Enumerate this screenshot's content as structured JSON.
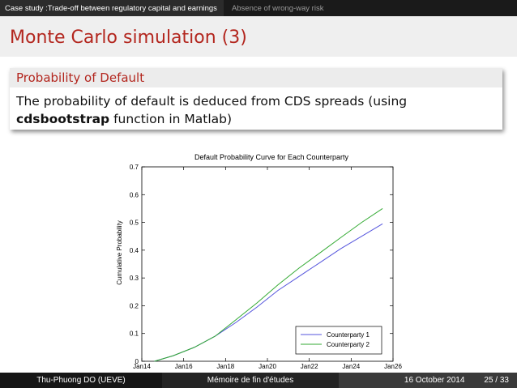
{
  "nav": {
    "section_active": "Case study :Trade-off between regulatory capital and earnings",
    "section_next": "Absence of wrong-way risk"
  },
  "slide": {
    "title": "Monte Carlo simulation (3)"
  },
  "block": {
    "title": "Probability of Default",
    "line1": "The probability of default is deduced from CDS spreads (using",
    "bold_word": "cdsbootstrap",
    "line2_rest": " function in Matlab)"
  },
  "footer": {
    "author": "Thu-Phuong DO  (UEVE)",
    "doc_title": "Mémoire de fin d'études",
    "date": "16 October 2014",
    "page": "25 / 33"
  },
  "colors": {
    "title_red": "#b3261e",
    "series1": "#5555dd",
    "series2": "#33aa33"
  },
  "chart_data": {
    "type": "line",
    "title": "Default Probability Curve for Each Counterparty",
    "xlabel": "",
    "ylabel": "Cumulative Probability",
    "xticks": [
      "Jan14",
      "Jan16",
      "Jan18",
      "Jan20",
      "Jan22",
      "Jan24",
      "Jan26"
    ],
    "xlim": [
      2014.0,
      2026.0
    ],
    "ylim": [
      0,
      0.7
    ],
    "yticks": [
      "0",
      "0.1",
      "0.2",
      "0.3",
      "0.4",
      "0.5",
      "0.6",
      "0.7"
    ],
    "grid": false,
    "legend_position": "bottom-right",
    "series": [
      {
        "name": "Counterparty 1",
        "color": "#5555dd",
        "x": [
          2014.6,
          2015.5,
          2016.5,
          2017.5,
          2018.5,
          2019.5,
          2020.5,
          2021.5,
          2022.5,
          2023.5,
          2024.5,
          2025.5
        ],
        "y": [
          0.0,
          0.02,
          0.05,
          0.09,
          0.14,
          0.195,
          0.255,
          0.305,
          0.355,
          0.405,
          0.45,
          0.495
        ]
      },
      {
        "name": "Counterparty 2",
        "color": "#33aa33",
        "x": [
          2014.6,
          2015.5,
          2016.5,
          2017.5,
          2018.5,
          2019.5,
          2020.5,
          2021.5,
          2022.5,
          2023.5,
          2024.5,
          2025.5
        ],
        "y": [
          0.0,
          0.02,
          0.05,
          0.09,
          0.15,
          0.21,
          0.275,
          0.335,
          0.39,
          0.445,
          0.5,
          0.55
        ]
      }
    ]
  }
}
